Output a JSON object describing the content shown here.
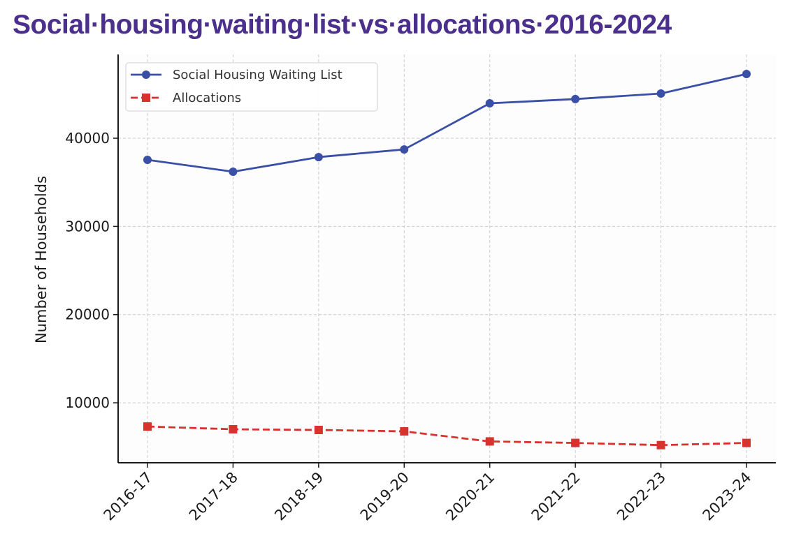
{
  "page_title": "Social·housing·waiting·list·vs·allocations·2016-2024",
  "chart_data": {
    "type": "line",
    "title": "Social housing waiting list vs allocations 2016-2024",
    "xlabel": "",
    "ylabel": "Number of Households",
    "categories": [
      "2016-17",
      "2017-18",
      "2018-19",
      "2019-20",
      "2020-21",
      "2021-22",
      "2022-23",
      "2023-24"
    ],
    "y_ticks": [
      10000,
      20000,
      30000,
      40000
    ],
    "y_tick_labels": [
      "10000",
      "20000",
      "30000",
      "40000"
    ],
    "ylim": [
      3200,
      49500
    ],
    "grid": true,
    "legend_position": "top-left",
    "series": [
      {
        "name": "Social Housing Waiting List",
        "color": "#3a4fa6",
        "line_style": "solid",
        "marker": "circle",
        "values": [
          37550,
          36200,
          37860,
          38730,
          43960,
          44440,
          45070,
          47280
        ]
      },
      {
        "name": "Allocations",
        "color": "#d8322f",
        "line_style": "dashed",
        "marker": "square",
        "values": [
          7310,
          7000,
          6920,
          6760,
          5620,
          5450,
          5200,
          5450
        ]
      }
    ]
  }
}
